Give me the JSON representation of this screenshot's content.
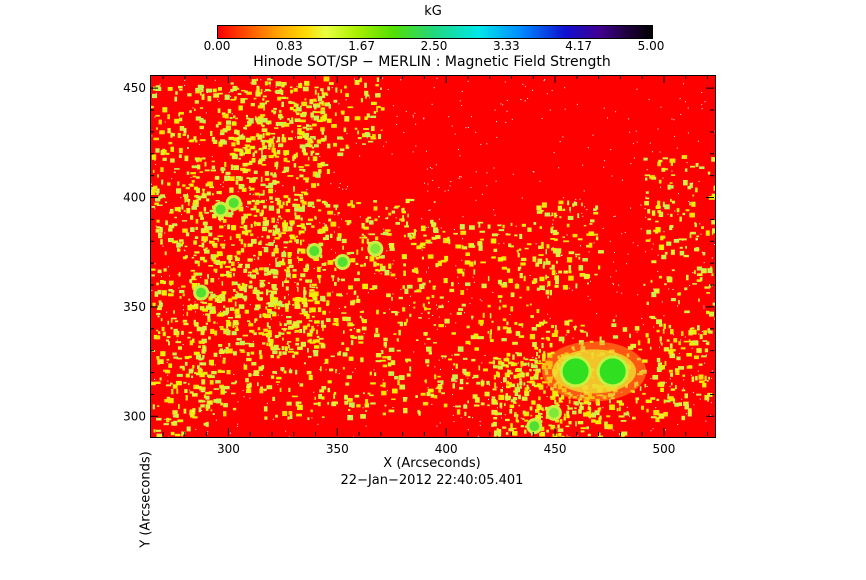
{
  "colorbar": {
    "unit": "kG",
    "ticks": [
      "0.00",
      "0.83",
      "1.67",
      "2.50",
      "3.33",
      "4.17",
      "5.00"
    ],
    "min": 0,
    "max": 5
  },
  "chart_data": {
    "type": "heatmap",
    "title": "Hinode SOT/SP − MERLIN : Magnetic Field Strength",
    "xlabel": "X (Arcseconds)",
    "ylabel": "Y (Arcseconds)",
    "xlim": [
      264,
      523
    ],
    "ylim": [
      291,
      456
    ],
    "xticks": [
      300,
      350,
      400,
      450,
      500
    ],
    "yticks": [
      300,
      350,
      400,
      450
    ],
    "xtick_labels": [
      "300",
      "350",
      "400",
      "450",
      "500"
    ],
    "ytick_labels": [
      "300",
      "350",
      "400",
      "450"
    ],
    "value_unit": "kG",
    "features": [
      {
        "name": "sunspot-umbra",
        "x": 459,
        "y": 321,
        "value": 2.3
      },
      {
        "name": "sunspot-umbra",
        "x": 476,
        "y": 321,
        "value": 2.3
      },
      {
        "name": "pore",
        "x": 296,
        "y": 395,
        "value": 2.0
      },
      {
        "name": "pore",
        "x": 302,
        "y": 398,
        "value": 1.9
      },
      {
        "name": "pore",
        "x": 287,
        "y": 357,
        "value": 1.9
      },
      {
        "name": "pore",
        "x": 352,
        "y": 371,
        "value": 1.9
      },
      {
        "name": "pore",
        "x": 339,
        "y": 376,
        "value": 1.9
      },
      {
        "name": "pore",
        "x": 367,
        "y": 377,
        "value": 1.8
      },
      {
        "name": "pore",
        "x": 440,
        "y": 296,
        "value": 1.9
      },
      {
        "name": "pore",
        "x": 449,
        "y": 302,
        "value": 1.8
      }
    ]
  },
  "footer": {
    "timestamp": "22−Jan−2012 22:40:05.401"
  }
}
